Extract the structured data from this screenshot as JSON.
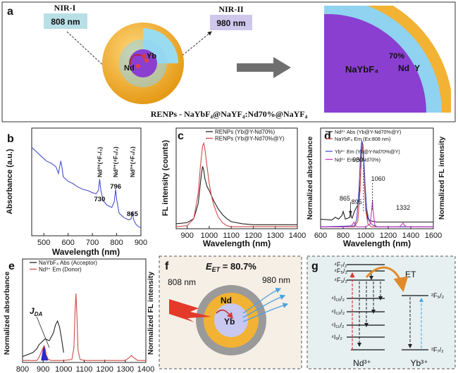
{
  "panel_a": {
    "letter": "a",
    "nir1_label": "NIR-I",
    "nir1_value": "808 nm",
    "nir2_label": "NIR-II",
    "nir2_value": "980 nm",
    "core_yb": "Yb",
    "core_nd": "Nd",
    "zoom_core": "NaYbF₄",
    "zoom_pct": "70%",
    "zoom_nd": "Nd",
    "zoom_y": "Y",
    "caption": "RENPs - NaYbF₄@NaYF₄:Nd70%@NaYF₄",
    "colors": {
      "core": "#8a3fd1",
      "mid": "#8fd3f0",
      "shell": "#f2b233",
      "nir1_box": "#b9dfe6",
      "nir2_box": "#cfc8ec"
    }
  },
  "chart_data": [
    {
      "panel": "b",
      "type": "line",
      "xlabel": "Wavelength (nm)",
      "ylabel": "Absorbance (a.u.)",
      "xlim": [
        450,
        900
      ],
      "xticks": [
        500,
        600,
        700,
        800,
        900
      ],
      "series": [
        {
          "name": "",
          "color": "#4a52c8",
          "x": [
            450,
            470,
            490,
            510,
            530,
            550,
            560,
            570,
            575,
            580,
            590,
            600,
            620,
            640,
            660,
            680,
            700,
            715,
            725,
            730,
            735,
            745,
            760,
            780,
            790,
            796,
            800,
            810,
            830,
            850,
            860,
            865,
            870,
            880,
            890,
            900
          ],
          "y": [
            0.78,
            0.74,
            0.7,
            0.66,
            0.64,
            0.61,
            0.55,
            0.66,
            0.6,
            0.52,
            0.5,
            0.48,
            0.46,
            0.43,
            0.41,
            0.4,
            0.38,
            0.37,
            0.4,
            0.5,
            0.4,
            0.31,
            0.27,
            0.25,
            0.3,
            0.41,
            0.32,
            0.2,
            0.16,
            0.14,
            0.15,
            0.21,
            0.14,
            0.1,
            0.08,
            0.07
          ]
        }
      ],
      "annotations": [
        {
          "x": 730,
          "peak": "Nd³⁺(⁴F₇/₂)",
          "value": "730"
        },
        {
          "x": 796,
          "peak": "Nd³⁺(⁴F₅/₂)",
          "value": "796"
        },
        {
          "x": 865,
          "peak": "Nd³⁺(⁴F₃/₂)",
          "value": "865"
        }
      ]
    },
    {
      "panel": "c",
      "type": "line",
      "xlabel": "Wavelength (nm)",
      "ylabel": "FL intensity (counts)",
      "xlim": [
        850,
        1400
      ],
      "xticks": [
        900,
        1000,
        1100,
        1200,
        1300,
        1400
      ],
      "legend": "top-right",
      "series": [
        {
          "name": "RENPs (Yb@Y-Nd70%)",
          "color": "#222222",
          "x": [
            850,
            900,
            930,
            950,
            960,
            965,
            970,
            975,
            980,
            990,
            1000,
            1010,
            1020,
            1040,
            1060,
            1080,
            1100,
            1150,
            1200,
            1300,
            1400
          ],
          "y": [
            0.05,
            0.06,
            0.1,
            0.25,
            0.45,
            0.55,
            0.62,
            0.58,
            0.5,
            0.42,
            0.38,
            0.33,
            0.28,
            0.2,
            0.14,
            0.1,
            0.07,
            0.05,
            0.04,
            0.04,
            0.04
          ]
        },
        {
          "name": "RENPs (Yb@Y-Nd70%@Y)",
          "color": "#d04a4a",
          "x": [
            850,
            900,
            930,
            950,
            960,
            970,
            975,
            980,
            990,
            1000,
            1010,
            1020,
            1040,
            1060,
            1080,
            1100,
            1150,
            1200,
            1300,
            1400
          ],
          "y": [
            0.02,
            0.03,
            0.1,
            0.35,
            0.62,
            0.82,
            0.85,
            0.8,
            0.62,
            0.45,
            0.33,
            0.24,
            0.12,
            0.06,
            0.03,
            0.02,
            0.02,
            0.02,
            0.02,
            0.02
          ]
        }
      ]
    },
    {
      "panel": "d",
      "type": "line",
      "xlabel": "Wavelength (nm)",
      "ylabel": "Normalized absorbance",
      "ylabel2": "Normalized FL intensity",
      "xlim": [
        600,
        1600
      ],
      "xticks": [
        600,
        800,
        1000,
        1200,
        1400,
        1600
      ],
      "legend": "top-right",
      "series": [
        {
          "name": "Nd³⁺ Abs (Yb@Y-Nd70%@Y)",
          "color": "#222222",
          "x": [
            600,
            700,
            730,
            760,
            790,
            800,
            820,
            860,
            865,
            870,
            880,
            900,
            930,
            950,
            960,
            970,
            980,
            990,
            1000,
            1020,
            1050,
            1100,
            1300,
            1600
          ],
          "y": [
            0.1,
            0.09,
            0.12,
            0.1,
            0.14,
            0.18,
            0.1,
            0.12,
            0.2,
            0.13,
            0.11,
            0.18,
            0.25,
            0.45,
            0.7,
            0.9,
            0.75,
            0.45,
            0.22,
            0.1,
            0.08,
            0.07,
            0.07,
            0.07
          ]
        },
        {
          "name": "NaYbF₄ Em (Ex:808 nm)",
          "color": "#d04a4a",
          "x": [
            600,
            900,
            930,
            950,
            960,
            970,
            980,
            990,
            1000,
            1020,
            1050,
            1100,
            1600
          ],
          "y": [
            0.02,
            0.02,
            0.08,
            0.4,
            0.75,
            0.88,
            0.75,
            0.45,
            0.2,
            0.05,
            0.02,
            0.02,
            0.02
          ]
        },
        {
          "name": "Yb³⁺ Em (Yb@Y-Nd70%@Y)",
          "color": "#4a52c8",
          "x": [
            600,
            900,
            920,
            940,
            955,
            965,
            975,
            985,
            995,
            1010,
            1030,
            1060,
            1100,
            1600
          ],
          "y": [
            0.02,
            0.03,
            0.1,
            0.4,
            0.8,
            0.92,
            0.88,
            0.7,
            0.45,
            0.2,
            0.08,
            0.04,
            0.02,
            0.02
          ]
        },
        {
          "name": "Nd³⁺ Em (Y-Nd70%)",
          "color": "#c23cc2",
          "x": [
            600,
            850,
            880,
            895,
            905,
            920,
            1000,
            1040,
            1055,
            1060,
            1065,
            1080,
            1100,
            1300,
            1325,
            1332,
            1340,
            1360,
            1600
          ],
          "y": [
            0.02,
            0.02,
            0.04,
            0.07,
            0.04,
            0.02,
            0.02,
            0.05,
            0.22,
            0.3,
            0.2,
            0.04,
            0.02,
            0.02,
            0.05,
            0.06,
            0.04,
            0.02,
            0.02
          ]
        }
      ],
      "annotations": [
        {
          "x": 980,
          "value": "980"
        },
        {
          "x": 1060,
          "value": "1060"
        },
        {
          "x": 865,
          "value": "865"
        },
        {
          "x": 895,
          "value": "895"
        },
        {
          "x": 1332,
          "value": "1332"
        }
      ]
    },
    {
      "panel": "e",
      "type": "line",
      "xlabel": "",
      "ylabel": "Normalized absorbance",
      "ylabel2": "Normalized FL intensity",
      "xlim": [
        800,
        1400
      ],
      "xticks": [
        800,
        900,
        1000,
        1100,
        1200,
        1300,
        1400
      ],
      "legend": "top-left",
      "overlap_label": "J",
      "overlap_sub": "DA",
      "series": [
        {
          "name": "NaYbF₄ Abs (Acceptor)",
          "color": "#222222",
          "x": [
            800,
            850,
            870,
            880,
            890,
            900,
            910,
            920,
            930,
            940,
            950,
            960,
            970,
            980,
            990,
            1000
          ],
          "y": [
            0.06,
            0.1,
            0.14,
            0.18,
            0.2,
            0.22,
            0.24,
            0.23,
            0.22,
            0.26,
            0.3,
            0.38,
            0.42,
            0.36,
            0.24,
            0.1
          ]
        },
        {
          "name": "Nd³⁺ Em (Donor)",
          "color": "#d04a4a",
          "x": [
            800,
            870,
            880,
            890,
            900,
            905,
            910,
            915,
            925,
            940,
            1000,
            1040,
            1050,
            1055,
            1060,
            1065,
            1070,
            1080,
            1100,
            1200,
            1300,
            1320,
            1330,
            1340,
            1360,
            1400
          ],
          "y": [
            0.02,
            0.02,
            0.05,
            0.1,
            0.15,
            0.17,
            0.14,
            0.08,
            0.03,
            0.02,
            0.02,
            0.03,
            0.15,
            0.5,
            0.7,
            0.45,
            0.12,
            0.03,
            0.02,
            0.02,
            0.02,
            0.05,
            0.07,
            0.05,
            0.02,
            0.02
          ]
        }
      ]
    }
  ],
  "panel_f": {
    "letter": "f",
    "title": "E",
    "title_sub": "ET",
    "title_value": " = 80.7%",
    "in_label": "808 nm",
    "out_label": "980 nm",
    "nd": "Nd",
    "yb": "Yb"
  },
  "panel_g": {
    "letter": "g",
    "nd_levels": [
      "⁴F₇/₂",
      "⁴F₅/₂",
      "⁴F₃/₂",
      "⁴I₁₅/₂",
      "⁴I₁₃/₂",
      "⁴I₁₁/₂",
      "⁴I₉/₂"
    ],
    "yb_levels": [
      "²F₅/₂",
      "²F₇/₂"
    ],
    "et": "ET",
    "nd_ion": "Nd³⁺",
    "yb_ion": "Yb³⁺"
  }
}
